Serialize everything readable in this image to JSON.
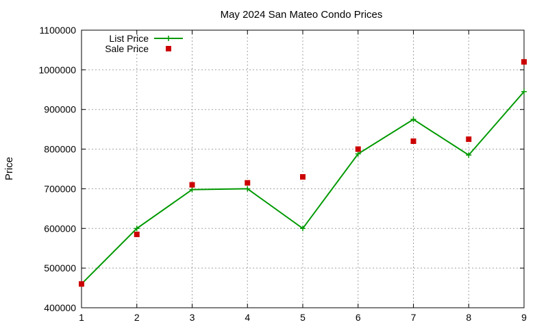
{
  "chart_data": {
    "type": "line",
    "title": "May 2024 San Mateo Condo Prices",
    "xlabel": "",
    "ylabel": "Price",
    "x": [
      1,
      2,
      3,
      4,
      5,
      6,
      7,
      8,
      9
    ],
    "xticks": [
      "1",
      "2",
      "3",
      "4",
      "5",
      "6",
      "7",
      "8",
      "9"
    ],
    "yticks": [
      "400000",
      "500000",
      "600000",
      "700000",
      "800000",
      "900000",
      "1000000",
      "1100000"
    ],
    "xlim": [
      1,
      9
    ],
    "ylim": [
      400000,
      1100000
    ],
    "grid": true,
    "legend_position": "top-left",
    "series": [
      {
        "name": "List Price",
        "kind": "line-with-plus-markers",
        "color": "#009900",
        "values": [
          460000,
          600000,
          698000,
          700000,
          600000,
          788000,
          875000,
          785000,
          945000
        ]
      },
      {
        "name": "Sale Price",
        "kind": "square-markers",
        "color": "#cc0000",
        "values": [
          460000,
          585000,
          710000,
          715000,
          730000,
          800000,
          820000,
          825000,
          1020000
        ]
      }
    ]
  }
}
